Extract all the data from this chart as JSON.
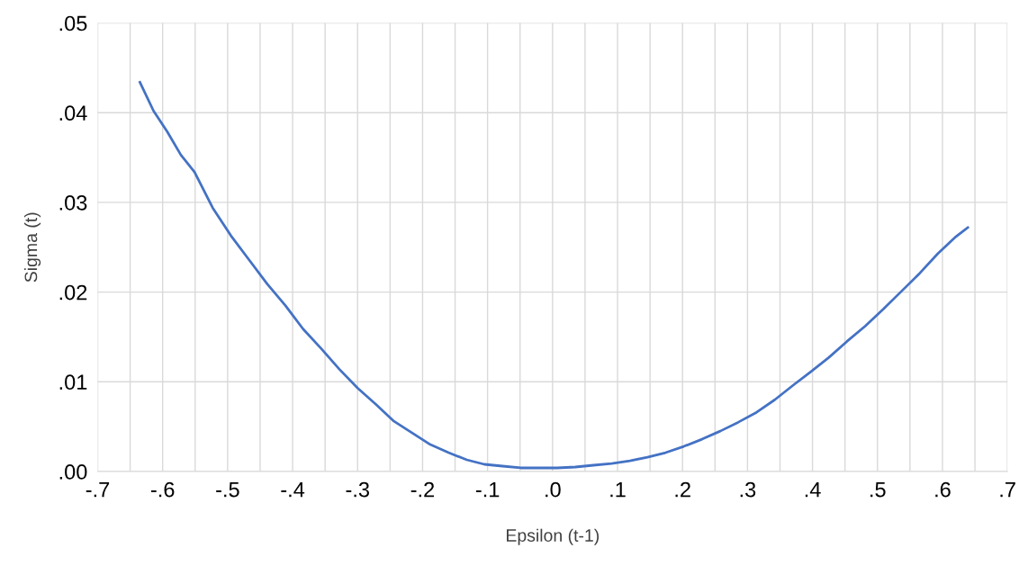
{
  "chart_data": {
    "type": "line",
    "xlabel": "Epsilon (t-1)",
    "ylabel": "Sigma (t)",
    "grid": true,
    "marker": "none",
    "line_style": "solid",
    "xlim": [
      -0.7,
      0.7
    ],
    "ylim": [
      0,
      0.05
    ],
    "xticks": [
      {
        "value": -0.7,
        "label": "-.7"
      },
      {
        "value": -0.65,
        "label": null
      },
      {
        "value": -0.6,
        "label": "-.6"
      },
      {
        "value": -0.55,
        "label": null
      },
      {
        "value": -0.5,
        "label": "-.5"
      },
      {
        "value": -0.45,
        "label": null
      },
      {
        "value": -0.4,
        "label": "-.4"
      },
      {
        "value": -0.35,
        "label": null
      },
      {
        "value": -0.3,
        "label": "-.3"
      },
      {
        "value": -0.25,
        "label": null
      },
      {
        "value": -0.2,
        "label": "-.2"
      },
      {
        "value": -0.15,
        "label": null
      },
      {
        "value": -0.1,
        "label": "-.1"
      },
      {
        "value": -0.05,
        "label": null
      },
      {
        "value": 0,
        "label": ".0"
      },
      {
        "value": 0.05,
        "label": null
      },
      {
        "value": 0.1,
        "label": ".1"
      },
      {
        "value": 0.15,
        "label": null
      },
      {
        "value": 0.2,
        "label": ".2"
      },
      {
        "value": 0.25,
        "label": null
      },
      {
        "value": 0.3,
        "label": ".3"
      },
      {
        "value": 0.35,
        "label": null
      },
      {
        "value": 0.4,
        "label": ".4"
      },
      {
        "value": 0.45,
        "label": null
      },
      {
        "value": 0.5,
        "label": ".5"
      },
      {
        "value": 0.55,
        "label": null
      },
      {
        "value": 0.6,
        "label": ".6"
      },
      {
        "value": 0.65,
        "label": null
      },
      {
        "value": 0.7,
        "label": ".7"
      }
    ],
    "yticks": [
      {
        "value": 0,
        "label": ".00"
      },
      {
        "value": 0.01,
        "label": ".01"
      },
      {
        "value": 0.02,
        "label": ".02"
      },
      {
        "value": 0.03,
        "label": ".03"
      },
      {
        "value": 0.04,
        "label": ".04"
      },
      {
        "value": 0.05,
        "label": ".05"
      }
    ],
    "series": [
      {
        "color": "#4472c4",
        "x": [
          -0.635,
          -0.614,
          -0.593,
          -0.572,
          -0.551,
          -0.523,
          -0.495,
          -0.467,
          -0.439,
          -0.411,
          -0.384,
          -0.356,
          -0.328,
          -0.3,
          -0.272,
          -0.244,
          -0.216,
          -0.188,
          -0.16,
          -0.132,
          -0.105,
          -0.077,
          -0.049,
          -0.021,
          0.007,
          0.035,
          0.063,
          0.091,
          0.119,
          0.146,
          0.174,
          0.202,
          0.23,
          0.258,
          0.286,
          0.314,
          0.342,
          0.37,
          0.397,
          0.425,
          0.453,
          0.481,
          0.509,
          0.537,
          0.565,
          0.593,
          0.621,
          0.639
        ],
        "values": [
          0.0434,
          0.0402,
          0.0379,
          0.0353,
          0.0334,
          0.0294,
          0.0263,
          0.0236,
          0.0209,
          0.0185,
          0.0159,
          0.0137,
          0.0114,
          0.0093,
          0.0075,
          0.0056,
          0.0043,
          0.003,
          0.0021,
          0.0013,
          0.0008,
          0.0006,
          0.0004,
          0.0004,
          0.0004,
          0.0005,
          0.0007,
          0.0009,
          0.0012,
          0.0016,
          0.0021,
          0.0028,
          0.0036,
          0.0045,
          0.0055,
          0.0066,
          0.008,
          0.0096,
          0.0111,
          0.0127,
          0.0145,
          0.0162,
          0.0181,
          0.0201,
          0.0221,
          0.0243,
          0.0262,
          0.0272
        ]
      }
    ]
  }
}
